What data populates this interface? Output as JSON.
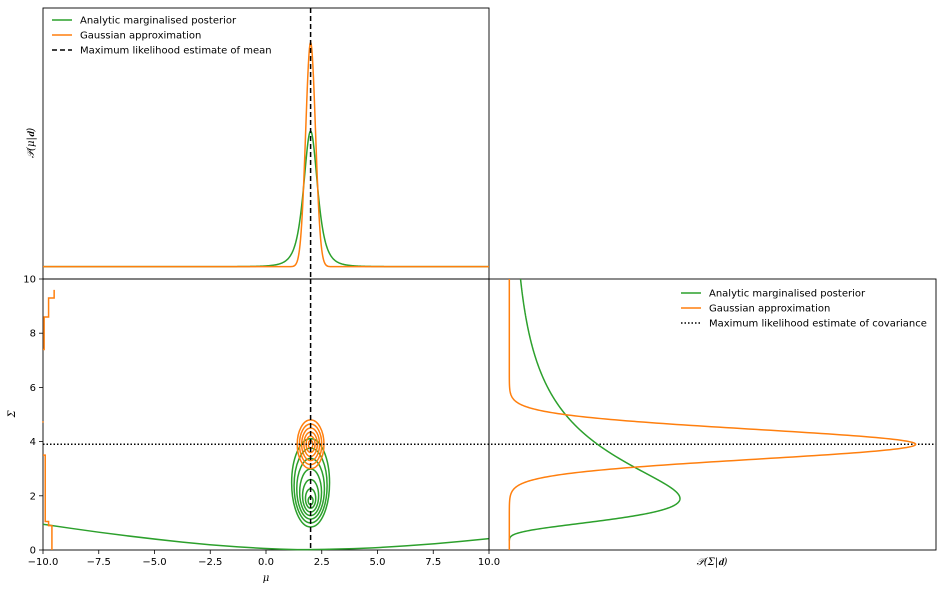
{
  "colors": {
    "analytic": "#2ca02c",
    "gaussian": "#ff7f0e",
    "ml": "#000000"
  },
  "chart_data": [
    {
      "name": "mu-marginal",
      "type": "line",
      "ylabel": "𝒫(μ|𝐝)",
      "xlim": [
        -10,
        10
      ],
      "ylim": [
        -0.05,
        1.05
      ],
      "legend": {
        "placement": "top-left",
        "entries": [
          {
            "label": "Analytic marginalised posterior",
            "style": "solid",
            "color": "#2ca02c"
          },
          {
            "label": "Gaussian approximation",
            "style": "solid",
            "color": "#ff7f0e"
          },
          {
            "label": "Maximum likelihood estimate of mean",
            "style": "dashed",
            "color": "#000000"
          }
        ]
      },
      "series": [
        {
          "name": "Analytic marginalised posterior",
          "kind": "student-t",
          "center": 2.0,
          "scale": 0.33,
          "dof": 3,
          "peak": 0.55
        },
        {
          "name": "Gaussian approximation",
          "kind": "gaussian",
          "center": 2.0,
          "sigma": 0.22,
          "peak": 0.91
        }
      ],
      "vline_x": 2.0
    },
    {
      "name": "joint-contour",
      "type": "contour",
      "xlabel": "μ",
      "ylabel": "Σ",
      "xlim": [
        -10,
        10
      ],
      "ylim": [
        0,
        10
      ],
      "xticks": [
        "−10.0",
        "−7.5",
        "−5.0",
        "−2.5",
        "0.0",
        "2.5",
        "5.0",
        "7.5",
        "10.0"
      ],
      "xtick_values": [
        -10,
        -7.5,
        -5,
        -2.5,
        0,
        2.5,
        5,
        7.5,
        10
      ],
      "yticks": [
        "0",
        "2",
        "4",
        "6",
        "8",
        "10"
      ],
      "ytick_values": [
        0,
        2,
        4,
        6,
        8,
        10
      ],
      "analytic_contours": [
        {
          "mu": 2.0,
          "sigma_c": 2.48,
          "rx": 0.85,
          "ry": 1.63
        },
        {
          "mu": 2.0,
          "sigma_c": 2.38,
          "rx": 0.74,
          "ry": 1.38
        },
        {
          "mu": 2.0,
          "sigma_c": 2.26,
          "rx": 0.62,
          "ry": 1.12
        },
        {
          "mu": 2.0,
          "sigma_c": 2.13,
          "rx": 0.49,
          "ry": 0.86
        },
        {
          "mu": 2.0,
          "sigma_c": 2.0,
          "rx": 0.36,
          "ry": 0.6
        },
        {
          "mu": 2.0,
          "sigma_c": 1.9,
          "rx": 0.23,
          "ry": 0.36
        },
        {
          "mu": 2.0,
          "sigma_c": 1.82,
          "rx": 0.11,
          "ry": 0.15
        }
      ],
      "gaussian_contours": [
        {
          "mu": 2.0,
          "sigma_c": 3.9,
          "rx": 0.6,
          "ry": 0.9
        },
        {
          "mu": 2.0,
          "sigma_c": 3.9,
          "rx": 0.5,
          "ry": 0.75
        },
        {
          "mu": 2.0,
          "sigma_c": 3.9,
          "rx": 0.4,
          "ry": 0.6
        },
        {
          "mu": 2.0,
          "sigma_c": 3.9,
          "rx": 0.3,
          "ry": 0.45
        },
        {
          "mu": 2.0,
          "sigma_c": 3.9,
          "rx": 0.2,
          "ry": 0.3
        },
        {
          "mu": 2.0,
          "sigma_c": 3.9,
          "rx": 0.1,
          "ry": 0.15
        }
      ],
      "analytic_outer": [
        [
          -10,
          0.95
        ],
        [
          -7.5,
          0.65
        ],
        [
          -5,
          0.4
        ],
        [
          -2.5,
          0.18
        ],
        [
          0,
          0.05
        ],
        [
          2,
          0.0
        ],
        [
          5,
          0.08
        ],
        [
          7.5,
          0.22
        ],
        [
          10,
          0.42
        ]
      ],
      "gaussian_outer": [
        [
          -9.5,
          9.6
        ],
        [
          -9.5,
          9.3
        ],
        [
          -9.75,
          9.3
        ],
        [
          -9.75,
          8.6
        ],
        [
          -9.95,
          8.6
        ],
        [
          -9.95,
          7.4
        ],
        [
          -10,
          7.4
        ]
      ],
      "gaussian_outer_low": [
        [
          -10,
          4.75
        ],
        [
          -10.0,
          4.7
        ]
      ],
      "gaussian_outer_bottom": [
        [
          -10,
          3.5
        ],
        [
          -9.9,
          3.5
        ],
        [
          -9.9,
          1.05
        ],
        [
          -9.75,
          1.05
        ],
        [
          -9.75,
          0.9
        ],
        [
          -9.6,
          0.9
        ],
        [
          -9.6,
          0
        ]
      ],
      "vline_x": 2.0,
      "hline_y": 3.9
    },
    {
      "name": "sigma-marginal",
      "type": "line",
      "xlabel": "𝒫(Σ|𝐝)",
      "xlim": [
        -0.05,
        1.05
      ],
      "ylim": [
        0,
        10
      ],
      "legend": {
        "placement": "top-right",
        "entries": [
          {
            "label": "Analytic marginalised posterior",
            "style": "solid",
            "color": "#2ca02c"
          },
          {
            "label": "Gaussian approximation",
            "style": "solid",
            "color": "#ff7f0e"
          },
          {
            "label": "Maximum likelihood estimate of covariance",
            "style": "dotted",
            "color": "#000000"
          }
        ]
      },
      "series": [
        {
          "name": "Analytic marginalised posterior",
          "kind": "inverse-gamma",
          "mode": 1.9,
          "peak": 0.42
        },
        {
          "name": "Gaussian approximation",
          "kind": "gaussian",
          "center": 3.9,
          "sigma": 0.55,
          "peak": 1.0
        }
      ],
      "hline_y": 3.9
    }
  ]
}
